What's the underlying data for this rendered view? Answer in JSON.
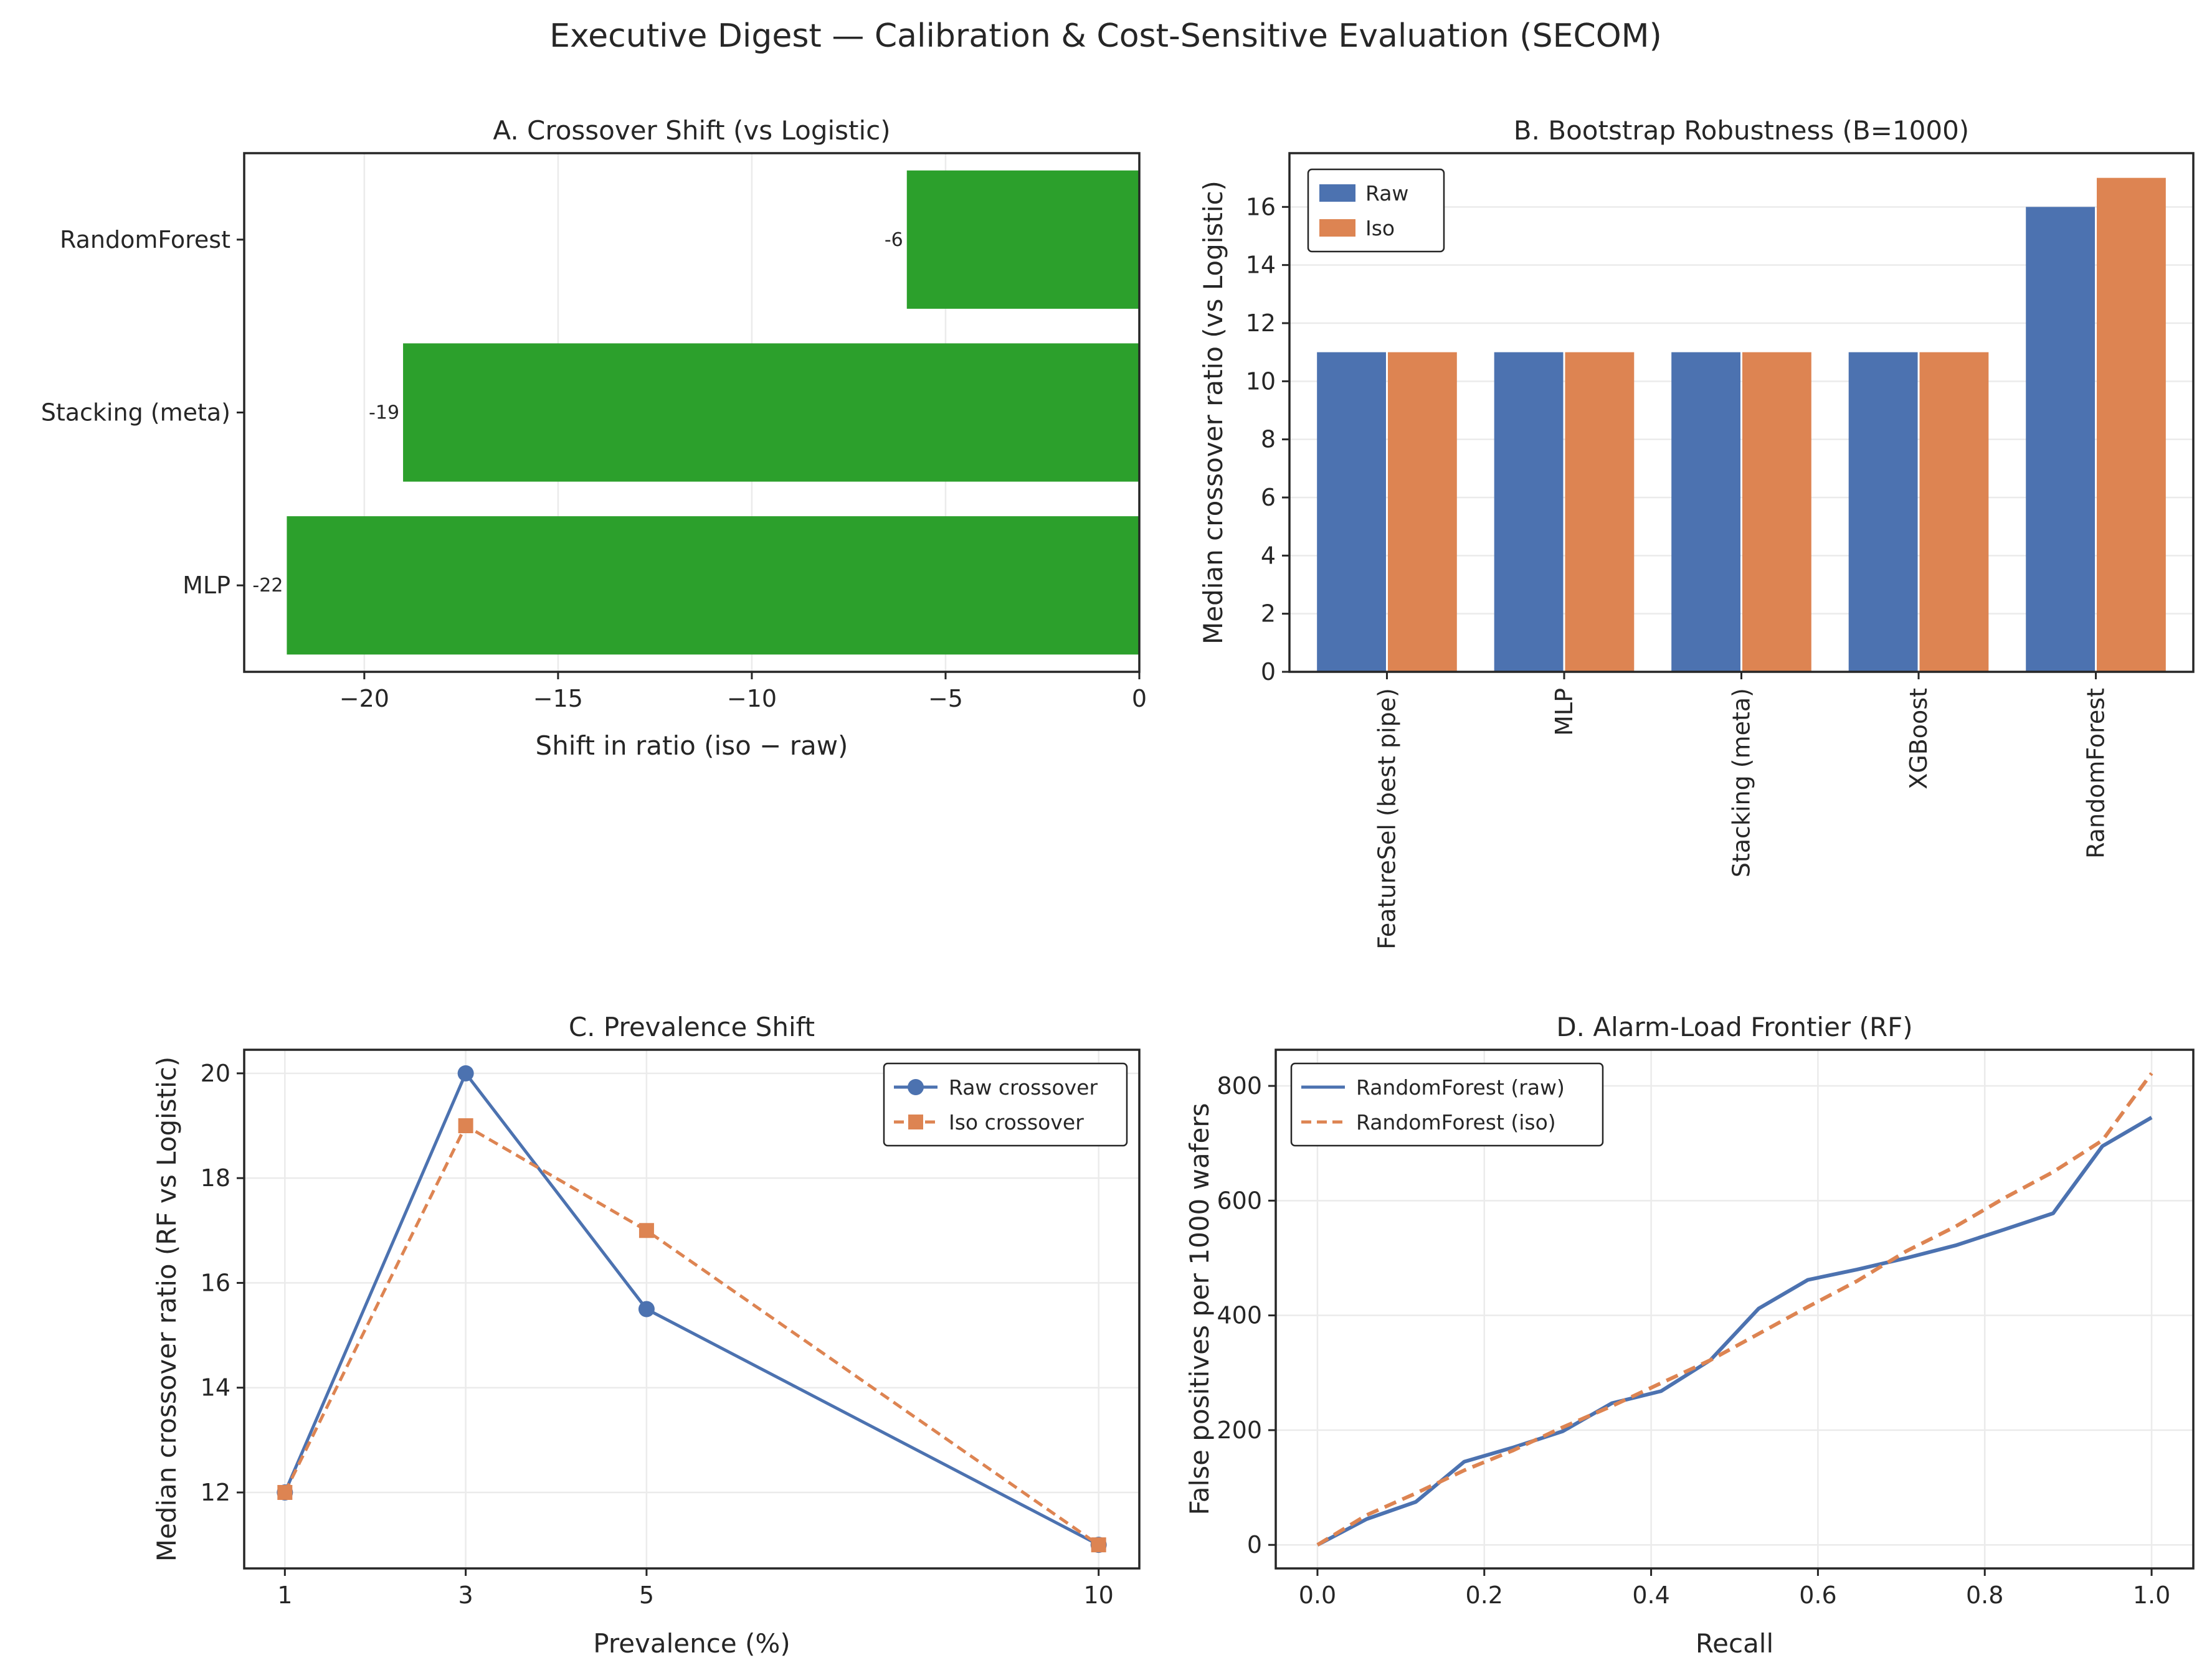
{
  "figure": {
    "title": "Executive Digest — Calibration & Cost-Sensitive Evaluation (SECOM)"
  },
  "colors": {
    "shift_bar": "#2ca02c",
    "raw": "#4c72b0",
    "iso": "#dd8452",
    "grid": "#ebebeb",
    "axis": "#262626"
  },
  "chart_data": [
    {
      "id": "A",
      "type": "bar",
      "orientation": "horizontal",
      "title": "A. Crossover Shift (vs Logistic)",
      "xlabel": "Shift in ratio (iso − raw)",
      "ylabel": "",
      "categories": [
        "RandomForest",
        "Stacking (meta)",
        "MLP"
      ],
      "values": [
        -6,
        -19,
        -22
      ],
      "value_labels": [
        "-6",
        "-19",
        "-22"
      ],
      "xlim": [
        -23.1,
        0
      ],
      "xticks": [
        -20,
        -15,
        -10,
        -5,
        0
      ],
      "xtick_labels": [
        "−20",
        "−15",
        "−10",
        "−5",
        "0"
      ],
      "grid": true,
      "color": "#2ca02c"
    },
    {
      "id": "B",
      "type": "bar",
      "title": "B. Bootstrap Robustness (B=1000)",
      "xlabel": "",
      "ylabel": "Median crossover ratio (vs Logistic)",
      "categories": [
        "FeatureSel (best pipe)",
        "MLP",
        "Stacking (meta)",
        "XGBoost",
        "RandomForest"
      ],
      "series": [
        {
          "name": "Raw",
          "values": [
            11,
            11,
            11,
            11,
            16
          ],
          "color": "#4c72b0"
        },
        {
          "name": "Iso",
          "values": [
            11,
            11,
            11,
            11,
            17
          ],
          "color": "#dd8452"
        }
      ],
      "ylim": [
        0,
        17.85
      ],
      "yticks": [
        0,
        2,
        4,
        6,
        8,
        10,
        12,
        14,
        16
      ],
      "legend": "top-left",
      "grid": true
    },
    {
      "id": "C",
      "type": "line",
      "title": "C. Prevalence Shift",
      "xlabel": "Prevalence (%)",
      "ylabel": "Median crossover ratio (RF vs Logistic)",
      "x": [
        1,
        3,
        5,
        10
      ],
      "xticks": [
        1,
        3,
        5,
        10
      ],
      "series": [
        {
          "name": "Raw crossover",
          "values": [
            12,
            20,
            15.5,
            11
          ],
          "color": "#4c72b0",
          "marker": "circle",
          "dash": "solid"
        },
        {
          "name": "Iso crossover",
          "values": [
            12,
            19,
            17,
            11
          ],
          "color": "#dd8452",
          "marker": "square",
          "dash": "dashed"
        }
      ],
      "xlim": [
        0.55,
        10.45
      ],
      "ylim": [
        10.55,
        20.45
      ],
      "yticks": [
        12,
        14,
        16,
        18,
        20
      ],
      "legend": "top-right",
      "grid": true
    },
    {
      "id": "D",
      "type": "line",
      "title": "D. Alarm-Load Frontier (RF)",
      "xlabel": "Recall",
      "ylabel": "False positives per 1000 wafers",
      "series": [
        {
          "name": "RandomForest (raw)",
          "color": "#4c72b0",
          "dash": "solid",
          "x": [
            0,
            0.059,
            0.118,
            0.176,
            0.235,
            0.294,
            0.353,
            0.412,
            0.471,
            0.529,
            0.588,
            0.647,
            0.706,
            0.765,
            0.824,
            0.882,
            0.941,
            1.0
          ],
          "values": [
            0,
            45,
            75,
            145,
            170,
            198,
            247,
            268,
            322,
            412,
            462,
            480,
            500,
            522,
            550,
            578,
            695,
            745
          ]
        },
        {
          "name": "RandomForest (iso)",
          "color": "#dd8452",
          "dash": "dashed",
          "x": [
            0,
            0.059,
            0.118,
            0.176,
            0.235,
            0.294,
            0.353,
            0.412,
            0.471,
            0.529,
            0.588,
            0.647,
            0.706,
            0.765,
            0.824,
            0.882,
            0.941,
            1.0
          ],
          "values": [
            0,
            52,
            90,
            130,
            165,
            205,
            242,
            282,
            322,
            368,
            415,
            460,
            512,
            555,
            605,
            650,
            705,
            822
          ]
        }
      ],
      "xlim": [
        -0.05,
        1.05
      ],
      "ylim": [
        -41,
        863
      ],
      "xticks": [
        0,
        0.2,
        0.4,
        0.6,
        0.8,
        1.0
      ],
      "xtick_labels": [
        "0.0",
        "0.2",
        "0.4",
        "0.6",
        "0.8",
        "1.0"
      ],
      "yticks": [
        0,
        200,
        400,
        600,
        800
      ],
      "legend": "top-left",
      "grid": true
    }
  ]
}
